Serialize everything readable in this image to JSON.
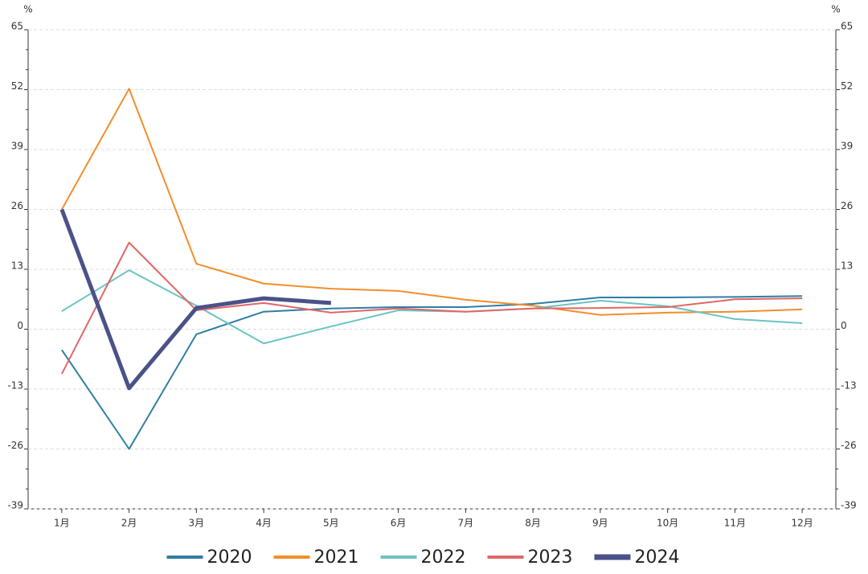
{
  "chart_data": {
    "type": "line",
    "y_axis_label": "%",
    "y2_axis_label": "%",
    "categories": [
      "1月",
      "2月",
      "3月",
      "4月",
      "5月",
      "6月",
      "7月",
      "8月",
      "9月",
      "10月",
      "11月",
      "12月"
    ],
    "series": [
      {
        "name": "2020",
        "color": "#2f7ea3",
        "line_width": 2,
        "values": [
          -4.5,
          -26,
          -1.1,
          3.8,
          4.5,
          4.8,
          4.8,
          5.5,
          6.9,
          6.9,
          7.0,
          7.2
        ]
      },
      {
        "name": "2021",
        "color": "#f28e2b",
        "line_width": 2,
        "values": [
          26,
          52.2,
          14.2,
          9.9,
          8.8,
          8.3,
          6.4,
          5.1,
          3.1,
          3.6,
          3.8,
          4.3
        ]
      },
      {
        "name": "2022",
        "color": "#6cc3c4",
        "line_width": 2,
        "values": [
          3.9,
          12.8,
          5.1,
          -3.1,
          0.6,
          4.1,
          3.8,
          4.5,
          6.2,
          5.0,
          2.2,
          1.3
        ]
      },
      {
        "name": "2023",
        "color": "#e06666",
        "line_width": 2,
        "values": [
          -9.7,
          18.8,
          4.1,
          5.7,
          3.6,
          4.5,
          3.8,
          4.5,
          4.6,
          4.8,
          6.5,
          6.7
        ]
      },
      {
        "name": "2024",
        "color": "#4a5289",
        "line_width": 5,
        "values": [
          26,
          -12.8,
          4.6,
          6.7,
          5.7,
          null,
          null,
          null,
          null,
          null,
          null,
          null
        ]
      }
    ],
    "ylim": [
      -39,
      65
    ],
    "yticks": [
      -39,
      -26,
      -13,
      0,
      13,
      26,
      39,
      52,
      65
    ],
    "y2lim": [
      -39,
      65
    ],
    "y2ticks": [
      -39,
      -26,
      -13,
      0,
      13,
      26,
      39,
      52,
      65
    ],
    "grid": true,
    "legend": "bottom"
  }
}
